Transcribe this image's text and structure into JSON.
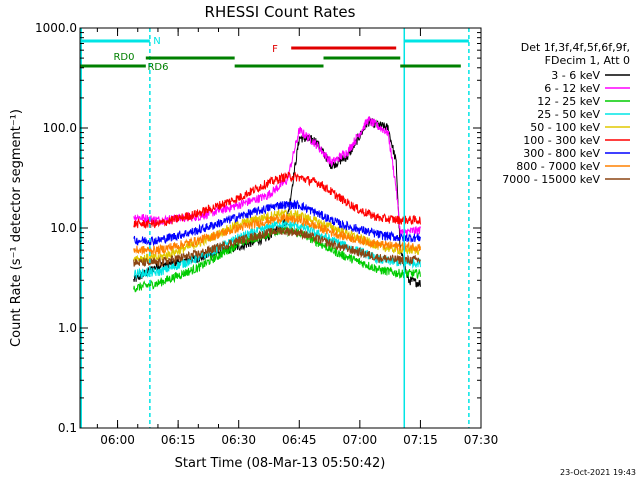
{
  "chart_data": {
    "type": "line",
    "title": "RHESSI Count Rates",
    "xlabel": "Start Time (08-Mar-13 05:50:42)",
    "ylabel": "Count Rate (s⁻¹ detector segment⁻¹)",
    "y_scale": "log",
    "ylim": [
      0.1,
      1000
    ],
    "xlim": [
      "05:50:42",
      "07:30:00"
    ],
    "x_ticks": [
      "06:00",
      "06:15",
      "06:30",
      "06:45",
      "07:00",
      "07:15",
      "07:30"
    ],
    "y_ticks": [
      "0.1",
      "1.0",
      "10.0",
      "100.0",
      "1000.0"
    ],
    "grid": false,
    "legend_placement": "right",
    "legend_header": [
      "Det 1f,3f,4f,5f,6f,9f,",
      "FDecim 1, Att 0"
    ],
    "timestamp": "23-Oct-2021 19:43",
    "series": [
      {
        "name": "3 - 6 keV",
        "color": "#000000",
        "points": [
          [
            "06:04",
            3.0
          ],
          [
            "06:10",
            4.2
          ],
          [
            "06:20",
            5.0
          ],
          [
            "06:30",
            6.5
          ],
          [
            "06:37",
            8.0
          ],
          [
            "06:42",
            12.0
          ],
          [
            "06:45",
            80.0
          ],
          [
            "06:49",
            75.0
          ],
          [
            "06:53",
            42.0
          ],
          [
            "06:57",
            52.0
          ],
          [
            "07:02",
            115.0
          ],
          [
            "07:07",
            100.0
          ],
          [
            "07:09",
            45.0
          ],
          [
            "07:10",
            6.0
          ],
          [
            "07:12",
            3.0
          ],
          [
            "07:15",
            2.8
          ]
        ]
      },
      {
        "name": "6 - 12 keV",
        "color": "#ff00ff",
        "points": [
          [
            "06:04",
            13.0
          ],
          [
            "06:10",
            12.0
          ],
          [
            "06:20",
            13.0
          ],
          [
            "06:30",
            17.0
          ],
          [
            "06:37",
            21.0
          ],
          [
            "06:42",
            30.0
          ],
          [
            "06:45",
            95.0
          ],
          [
            "06:49",
            70.0
          ],
          [
            "06:53",
            45.0
          ],
          [
            "06:57",
            58.0
          ],
          [
            "07:02",
            120.0
          ],
          [
            "07:07",
            90.0
          ],
          [
            "07:09",
            25.0
          ],
          [
            "07:10",
            9.0
          ],
          [
            "07:15",
            9.5
          ]
        ]
      },
      {
        "name": "12 - 25 keV",
        "color": "#00cc00",
        "points": [
          [
            "06:04",
            2.5
          ],
          [
            "06:10",
            2.8
          ],
          [
            "06:20",
            4.0
          ],
          [
            "06:30",
            7.0
          ],
          [
            "06:40",
            9.5
          ],
          [
            "06:45",
            9.0
          ],
          [
            "06:55",
            5.5
          ],
          [
            "07:05",
            3.8
          ],
          [
            "07:10",
            3.5
          ],
          [
            "07:15",
            3.5
          ]
        ]
      },
      {
        "name": "25 - 50 keV",
        "color": "#00e5e5",
        "points": [
          [
            "06:04",
            3.5
          ],
          [
            "06:10",
            3.6
          ],
          [
            "06:20",
            5.0
          ],
          [
            "06:30",
            8.0
          ],
          [
            "06:40",
            11.0
          ],
          [
            "06:45",
            10.5
          ],
          [
            "06:55",
            7.0
          ],
          [
            "07:05",
            4.8
          ],
          [
            "07:10",
            4.5
          ],
          [
            "07:15",
            4.5
          ]
        ]
      },
      {
        "name": "50 - 100 keV",
        "color": "#e0c800",
        "points": [
          [
            "06:04",
            5.0
          ],
          [
            "06:10",
            5.0
          ],
          [
            "06:20",
            7.0
          ],
          [
            "06:30",
            11.0
          ],
          [
            "06:40",
            14.0
          ],
          [
            "06:45",
            13.5
          ],
          [
            "06:55",
            9.5
          ],
          [
            "07:05",
            6.5
          ],
          [
            "07:10",
            6.0
          ],
          [
            "07:15",
            6.0
          ]
        ]
      },
      {
        "name": "100 - 300 keV",
        "color": "#ff0000",
        "points": [
          [
            "06:04",
            11.0
          ],
          [
            "06:10",
            11.0
          ],
          [
            "06:20",
            14.0
          ],
          [
            "06:30",
            20.0
          ],
          [
            "06:37",
            28.0
          ],
          [
            "06:42",
            33.0
          ],
          [
            "06:45",
            32.0
          ],
          [
            "06:50",
            28.0
          ],
          [
            "06:55",
            20.0
          ],
          [
            "07:00",
            15.0
          ],
          [
            "07:05",
            12.5
          ],
          [
            "07:10",
            12.0
          ],
          [
            "07:15",
            12.0
          ]
        ]
      },
      {
        "name": "300 - 800 keV",
        "color": "#0000ff",
        "points": [
          [
            "06:04",
            7.5
          ],
          [
            "06:10",
            7.5
          ],
          [
            "06:20",
            9.5
          ],
          [
            "06:30",
            13.0
          ],
          [
            "06:40",
            17.0
          ],
          [
            "06:45",
            17.0
          ],
          [
            "06:55",
            11.0
          ],
          [
            "07:05",
            8.5
          ],
          [
            "07:10",
            8.0
          ],
          [
            "07:15",
            8.0
          ]
        ]
      },
      {
        "name": "800 - 7000 keV",
        "color": "#ff8000",
        "points": [
          [
            "06:04",
            6.0
          ],
          [
            "06:10",
            6.0
          ],
          [
            "06:20",
            7.5
          ],
          [
            "06:30",
            10.0
          ],
          [
            "06:40",
            12.5
          ],
          [
            "06:45",
            12.0
          ],
          [
            "06:55",
            8.5
          ],
          [
            "07:05",
            6.8
          ],
          [
            "07:10",
            6.5
          ],
          [
            "07:15",
            6.5
          ]
        ]
      },
      {
        "name": "7000 - 15000 keV",
        "color": "#8b4513",
        "points": [
          [
            "06:04",
            4.5
          ],
          [
            "06:10",
            4.5
          ],
          [
            "06:20",
            5.5
          ],
          [
            "06:30",
            7.5
          ],
          [
            "06:40",
            9.5
          ],
          [
            "06:45",
            9.0
          ],
          [
            "06:55",
            6.5
          ],
          [
            "07:05",
            5.0
          ],
          [
            "07:10",
            4.8
          ],
          [
            "07:15",
            4.8
          ]
        ]
      }
    ],
    "annotations": {
      "night_bars": [
        {
          "label": "N",
          "color": "#00e5e5",
          "segments": [
            [
              "05:50:42",
              "06:08"
            ],
            [
              "07:11",
              "07:27"
            ]
          ]
        }
      ],
      "saa_bars": [
        {
          "label": "RD0",
          "color": "#008000",
          "segments": [
            [
              "05:50:42",
              "06:07"
            ]
          ]
        },
        {
          "label": "RD6",
          "color": "#008000",
          "segments": [
            [
              "06:07",
              "06:29"
            ],
            [
              "06:29",
              "06:51"
            ],
            [
              "06:51",
              "07:10"
            ],
            [
              "07:10",
              "07:25"
            ]
          ]
        }
      ],
      "flare_bars": [
        {
          "label": "F",
          "color": "#e00000",
          "segments": [
            [
              "06:43",
              "07:09"
            ]
          ]
        }
      ],
      "vlines": [
        {
          "time": "05:51",
          "color": "#00e5e5",
          "style": "solid"
        },
        {
          "time": "06:08",
          "color": "#00e5e5",
          "style": "dashed"
        },
        {
          "time": "07:11",
          "color": "#00e5e5",
          "style": "solid"
        },
        {
          "time": "07:27",
          "color": "#00e5e5",
          "style": "dashed"
        }
      ]
    }
  }
}
